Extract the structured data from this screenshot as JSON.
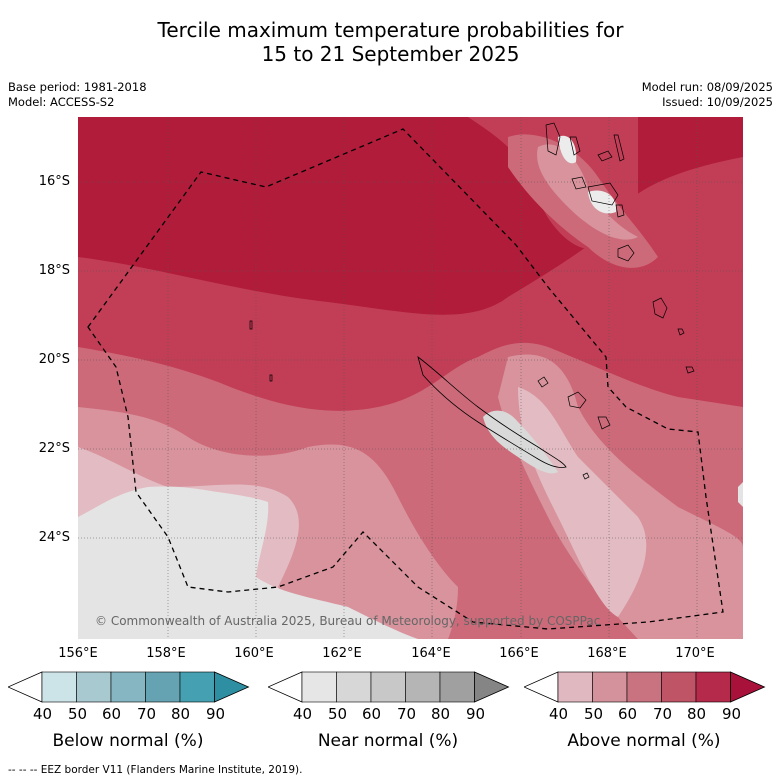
{
  "title_line1": "Tercile maximum temperature probabilities for",
  "title_line2": "15 to 21 September 2025",
  "base_period": "Base period: 1981-2018",
  "model": "Model: ACCESS-S2",
  "model_run": "Model run: 08/09/2025",
  "issued": "Issued: 10/09/2025",
  "lat_labels": [
    "16°S",
    "18°S",
    "20°S",
    "22°S",
    "24°S"
  ],
  "lon_labels": [
    "156°E",
    "158°E",
    "160°E",
    "162°E",
    "164°E",
    "166°E",
    "168°E",
    "170°E"
  ],
  "copyright": "© Commonwealth of Australia 2025, Bureau of Meteorology, supported by COSPPac",
  "colorbars": [
    {
      "title": "Below normal (%)",
      "ticks": [
        "40",
        "50",
        "60",
        "70",
        "80",
        "90"
      ],
      "colors": [
        "#ffffff",
        "#cce3e8",
        "#a8c9cf",
        "#86b6c1",
        "#66a3b2",
        "#45a0b1",
        "#2e8fa3"
      ]
    },
    {
      "title": "Near normal (%)",
      "ticks": [
        "40",
        "50",
        "60",
        "70",
        "80",
        "90"
      ],
      "colors": [
        "#ffffff",
        "#e6e6e6",
        "#d7d7d7",
        "#c8c8c8",
        "#b5b5b5",
        "#a0a0a0",
        "#858585"
      ]
    },
    {
      "title": "Above normal (%)",
      "ticks": [
        "40",
        "50",
        "60",
        "70",
        "80",
        "90"
      ],
      "colors": [
        "#ffffff",
        "#e0b8bf",
        "#d4939c",
        "#ca7380",
        "#c05467",
        "#b5294a",
        "#a8123a"
      ]
    }
  ],
  "footer": "--  --  -- EEZ border V11 (Flanders Marine Institute, 2019)."
}
